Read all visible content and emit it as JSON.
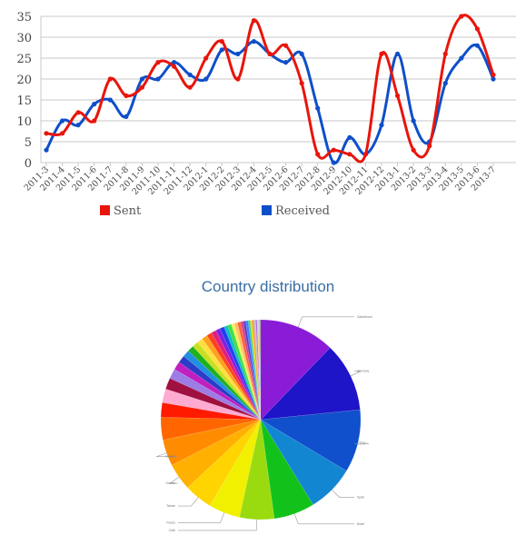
{
  "chart_data": [
    {
      "type": "line",
      "x": [
        "2011-3",
        "2011-4",
        "2011-5",
        "2011-6",
        "2011-7",
        "2011-8",
        "2011-9",
        "2011-10",
        "2011-11",
        "2011-12",
        "2012-1",
        "2012-2",
        "2012-3",
        "2012-4",
        "2012-5",
        "2012-6",
        "2012-7",
        "2012-8",
        "2012-9",
        "2012-10",
        "2012-11",
        "2012-12",
        "2013-1",
        "2013-2",
        "2013-3",
        "2013-4",
        "2013-5",
        "2013-6",
        "2013-7"
      ],
      "series": [
        {
          "name": "Sent",
          "color": "#e8150c",
          "values": [
            7,
            7,
            12,
            10,
            20,
            16,
            18,
            24,
            23,
            18,
            25,
            29,
            20,
            34,
            26,
            28,
            19,
            2,
            3,
            2,
            2,
            26,
            16,
            3,
            4,
            26,
            35,
            32,
            21
          ]
        },
        {
          "name": "Received",
          "color": "#0e4fc9",
          "values": [
            3,
            10,
            9,
            14,
            15,
            11,
            20,
            20,
            24,
            21,
            20,
            27,
            26,
            29,
            26,
            24,
            26,
            13,
            0,
            6,
            2,
            9,
            26,
            10,
            5,
            19,
            25,
            28,
            20
          ]
        }
      ],
      "yticks": [
        "0",
        "5",
        "10",
        "15",
        "20",
        "25",
        "30",
        "35"
      ],
      "ylim": [
        0,
        35
      ],
      "title": "",
      "xlabel": "",
      "ylabel": "",
      "grid": true,
      "legend_position": "bottom"
    },
    {
      "type": "pie",
      "title": "Country distribution",
      "slices": [
        {
          "label": "Switzerland",
          "value": 12.0,
          "color": "#8a1bd6"
        },
        {
          "label": "Germany",
          "value": 11.0,
          "color": "#1e14c8"
        },
        {
          "label": "U.S.A.",
          "value": 10.0,
          "color": "#1050cc"
        },
        {
          "label": "Spain",
          "value": 7.5,
          "color": "#1386d2"
        },
        {
          "label": "Brazil",
          "value": 6.5,
          "color": "#12c21a"
        },
        {
          "label": "Chile",
          "value": 5.5,
          "color": "#9adb10"
        },
        {
          "label": "France",
          "value": 5.0,
          "color": "#f0f000"
        },
        {
          "label": "Taiwan",
          "value": 4.5,
          "color": "#ffd400"
        },
        {
          "label": "Greece",
          "value": 4.3,
          "color": "#ffb000"
        },
        {
          "label": "Ukraine",
          "value": 4.2,
          "color": "#ff8c00"
        },
        {
          "label": "",
          "value": 3.6,
          "color": "#ff6600"
        },
        {
          "label": "",
          "value": 2.3,
          "color": "#ff1a00"
        },
        {
          "label": "",
          "value": 2.2,
          "color": "#ffaad0"
        },
        {
          "label": "",
          "value": 1.8,
          "color": "#a01040"
        },
        {
          "label": "",
          "value": 1.6,
          "color": "#9d7ce6"
        },
        {
          "label": "",
          "value": 1.3,
          "color": "#c020c0"
        },
        {
          "label": "",
          "value": 1.2,
          "color": "#2a3cc8"
        },
        {
          "label": "",
          "value": 1.1,
          "color": "#2090e0"
        },
        {
          "label": "",
          "value": 1.0,
          "color": "#20b020"
        },
        {
          "label": "",
          "value": 1.0,
          "color": "#c8e020"
        },
        {
          "label": "",
          "value": 0.9,
          "color": "#ffe040"
        },
        {
          "label": "",
          "value": 0.9,
          "color": "#ffa020"
        },
        {
          "label": "",
          "value": 0.8,
          "color": "#ff4020"
        },
        {
          "label": "",
          "value": 0.8,
          "color": "#e02080"
        },
        {
          "label": "",
          "value": 0.7,
          "color": "#8020e0"
        },
        {
          "label": "",
          "value": 0.7,
          "color": "#2040f0"
        },
        {
          "label": "",
          "value": 0.6,
          "color": "#10c0c0"
        },
        {
          "label": "",
          "value": 0.6,
          "color": "#40e040"
        },
        {
          "label": "",
          "value": 0.5,
          "color": "#f0f060"
        },
        {
          "label": "",
          "value": 0.5,
          "color": "#ffc060"
        },
        {
          "label": "",
          "value": 0.5,
          "color": "#ff6040"
        },
        {
          "label": "",
          "value": 0.4,
          "color": "#d04090"
        },
        {
          "label": "",
          "value": 0.4,
          "color": "#6040c0"
        },
        {
          "label": "",
          "value": 0.4,
          "color": "#4080ff"
        },
        {
          "label": "",
          "value": 0.3,
          "color": "#30d0a0"
        },
        {
          "label": "",
          "value": 0.3,
          "color": "#e0e000"
        },
        {
          "label": "",
          "value": 0.3,
          "color": "#ff9050"
        },
        {
          "label": "",
          "value": 0.3,
          "color": "#c0c0c0"
        },
        {
          "label": "",
          "value": 0.2,
          "color": "#b060f0"
        },
        {
          "label": "",
          "value": 0.2,
          "color": "#ffd070"
        },
        {
          "label": "",
          "value": 0.2,
          "color": "#90d0ff"
        },
        {
          "label": "",
          "value": 0.2,
          "color": "#a0a0a0"
        }
      ]
    }
  ]
}
